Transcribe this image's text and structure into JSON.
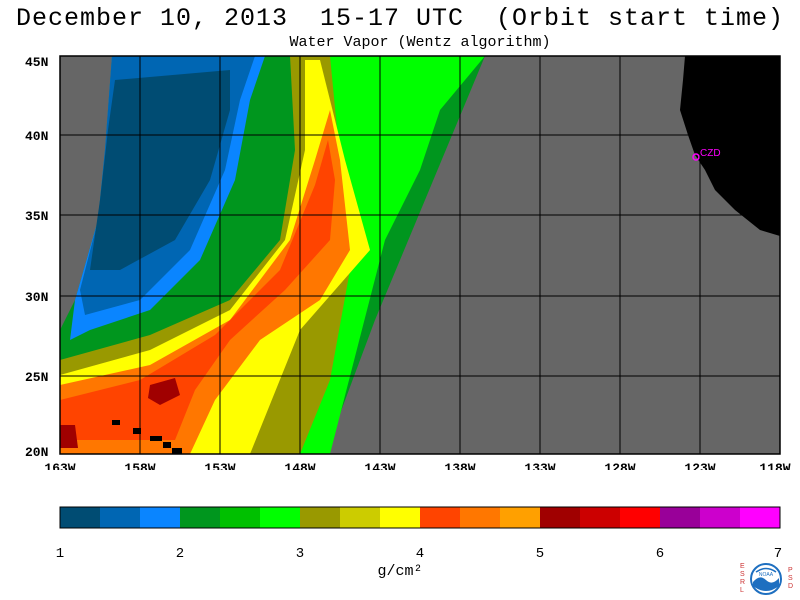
{
  "header": {
    "title": "December 10, 2013  15-17 UTC  (Orbit start time)",
    "subtitle": "Water Vapor (Wentz algorithm)"
  },
  "map": {
    "lat_labels": [
      "45N",
      "40N",
      "35N",
      "30N",
      "25N",
      "20N"
    ],
    "lon_labels": [
      "163W",
      "158W",
      "153W",
      "148W",
      "143W",
      "138W",
      "133W",
      "128W",
      "123W",
      "118W"
    ],
    "station_label": "CZD",
    "colors": {
      "no_data": "#666666",
      "land": "#000000",
      "grid": "#000000",
      "station": "#ff00ff"
    }
  },
  "colorbar": {
    "ticks": [
      "1",
      "2",
      "3",
      "4",
      "5",
      "6",
      "7"
    ],
    "unit": "g/cm²",
    "colors": [
      "#004c73",
      "#0066b3",
      "#0a85ff",
      "#00961e",
      "#00c000",
      "#00ff00",
      "#999900",
      "#cccc00",
      "#ffff00",
      "#ff4400",
      "#ff7700",
      "#ffa000",
      "#a00000",
      "#cc0000",
      "#ff0000",
      "#990099",
      "#cc00cc",
      "#ff00ff"
    ]
  },
  "logo": {
    "left_letters": [
      "E",
      "S",
      "R",
      "L"
    ],
    "right_letters": [
      "P",
      "S",
      "D"
    ],
    "center_text": "NOAA"
  }
}
